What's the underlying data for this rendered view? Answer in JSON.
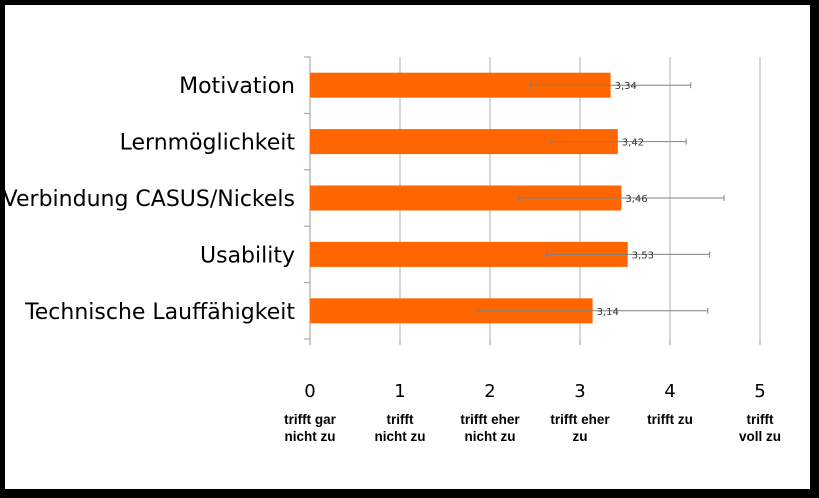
{
  "chart_data": {
    "type": "bar",
    "orientation": "horizontal",
    "title": "",
    "categories": [
      "Motivation",
      "Lernmöglichkeit",
      "Verbindung CASUS/Nickels",
      "Usability",
      "Technische Lauffähigkeit"
    ],
    "values": [
      3.34,
      3.42,
      3.46,
      3.53,
      3.14
    ],
    "value_labels": [
      "3,34",
      "3,42",
      "3,46",
      "3,53",
      "3,14"
    ],
    "error_low": [
      2.45,
      2.67,
      2.32,
      2.63,
      1.86
    ],
    "error_high": [
      4.23,
      4.18,
      4.6,
      4.44,
      4.42
    ],
    "xlim": [
      0,
      5
    ],
    "xticks": [
      "0",
      "1",
      "2",
      "3",
      "4",
      "5"
    ],
    "scale_labels": [
      [
        "trifft gar",
        "nicht zu"
      ],
      [
        "trifft",
        "nicht zu"
      ],
      [
        "trifft eher",
        "nicht zu"
      ],
      [
        "trifft eher",
        "zu"
      ],
      [
        "trifft  zu",
        ""
      ],
      [
        "trifft",
        "voll zu"
      ]
    ],
    "grid": true,
    "legend": "none",
    "bar_color": "#FF6600",
    "error_bar_color": "#808080"
  }
}
